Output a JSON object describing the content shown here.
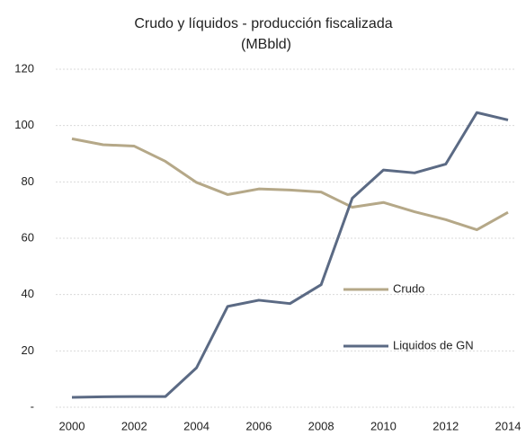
{
  "chart_data": {
    "type": "line",
    "title": "Crudo y líquidos - producción fiscalizada",
    "subtitle": "(MBbld)",
    "x": [
      2000,
      2001,
      2002,
      2003,
      2004,
      2005,
      2006,
      2007,
      2008,
      2009,
      2010,
      2011,
      2012,
      2013,
      2014
    ],
    "series": [
      {
        "name": "Crudo",
        "color": "#b5a888",
        "values": [
          95.3,
          93.2,
          92.7,
          87.3,
          79.8,
          75.5,
          77.5,
          77.1,
          76.4,
          71.0,
          72.7,
          69.4,
          66.6,
          63.0,
          69.2
        ]
      },
      {
        "name": "Liquidos de GN",
        "color": "#5b6a84",
        "values": [
          3.5,
          3.7,
          3.8,
          3.8,
          14.0,
          35.8,
          38.0,
          36.8,
          43.5,
          74.2,
          84.2,
          83.2,
          86.3,
          104.6,
          102.0
        ]
      }
    ],
    "xlim": [
      2000,
      2014
    ],
    "xticks": [
      2000,
      2002,
      2004,
      2006,
      2008,
      2010,
      2012,
      2014
    ],
    "ylim": [
      0,
      120
    ],
    "yticks": [
      {
        "value": 0,
        "label": "-"
      },
      20,
      40,
      60,
      80,
      100,
      120
    ],
    "grid": true
  }
}
